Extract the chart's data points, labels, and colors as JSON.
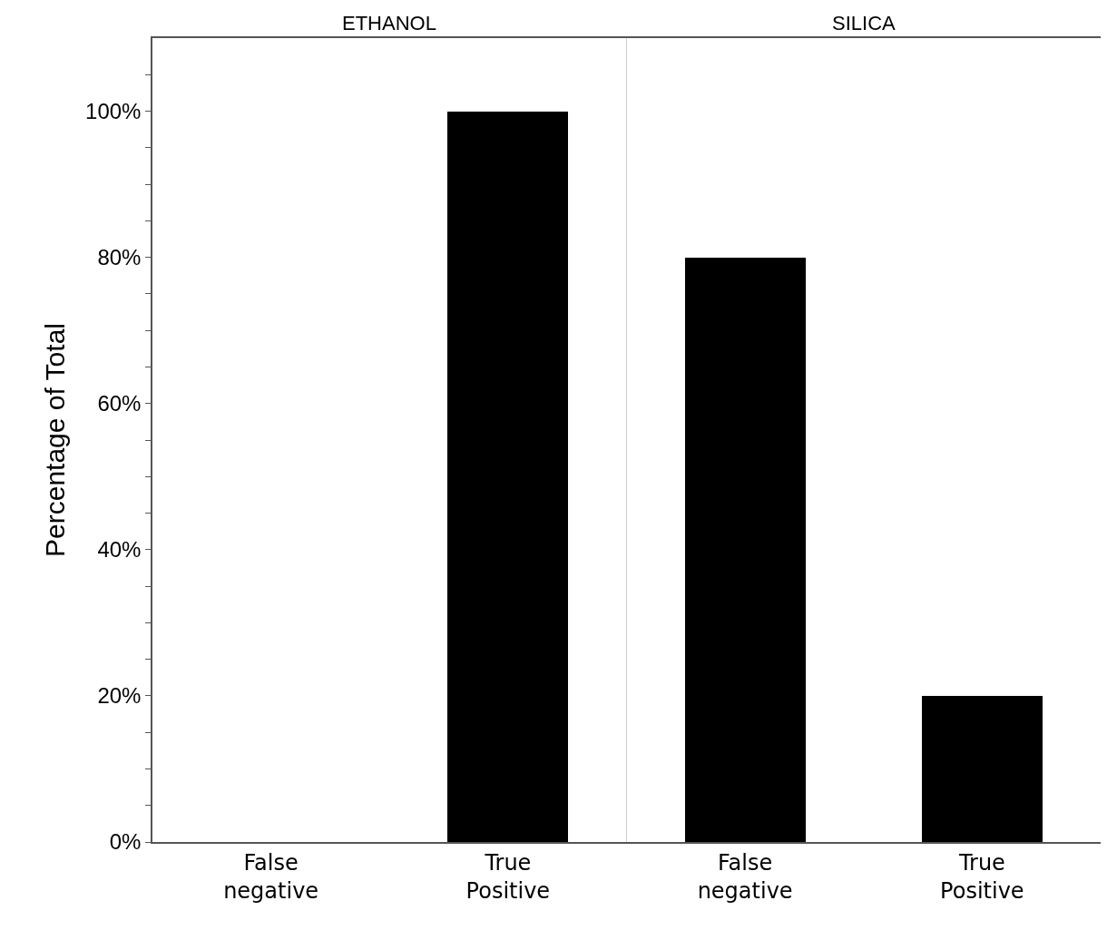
{
  "chart_data": [
    {
      "type": "bar",
      "title": "ETHANOL",
      "ylabel": "Percentage of Total",
      "categories": [
        "False negative",
        "True Positive"
      ],
      "values": [
        0,
        100
      ],
      "color": "#000000",
      "ylim": [
        0,
        110
      ],
      "yticks": [
        {
          "value": 0,
          "label": "0%"
        },
        {
          "value": 5,
          "label": null
        },
        {
          "value": 10,
          "label": null
        },
        {
          "value": 15,
          "label": null
        },
        {
          "value": 20,
          "label": "20%"
        },
        {
          "value": 25,
          "label": null
        },
        {
          "value": 30,
          "label": null
        },
        {
          "value": 35,
          "label": null
        },
        {
          "value": 40,
          "label": "40%"
        },
        {
          "value": 45,
          "label": null
        },
        {
          "value": 50,
          "label": null
        },
        {
          "value": 55,
          "label": null
        },
        {
          "value": 60,
          "label": "60%"
        },
        {
          "value": 65,
          "label": null
        },
        {
          "value": 70,
          "label": null
        },
        {
          "value": 75,
          "label": null
        },
        {
          "value": 80,
          "label": "80%"
        },
        {
          "value": 85,
          "label": null
        },
        {
          "value": 90,
          "label": null
        },
        {
          "value": 95,
          "label": null
        },
        {
          "value": 100,
          "label": "100%"
        },
        {
          "value": 105,
          "label": null
        }
      ]
    },
    {
      "type": "bar",
      "title": "SILICA",
      "categories": [
        "False negative",
        "True Positive"
      ],
      "values": [
        80,
        20
      ],
      "color": "#000000",
      "ylim": [
        0,
        110
      ],
      "tick_labels": "x"
    }
  ]
}
